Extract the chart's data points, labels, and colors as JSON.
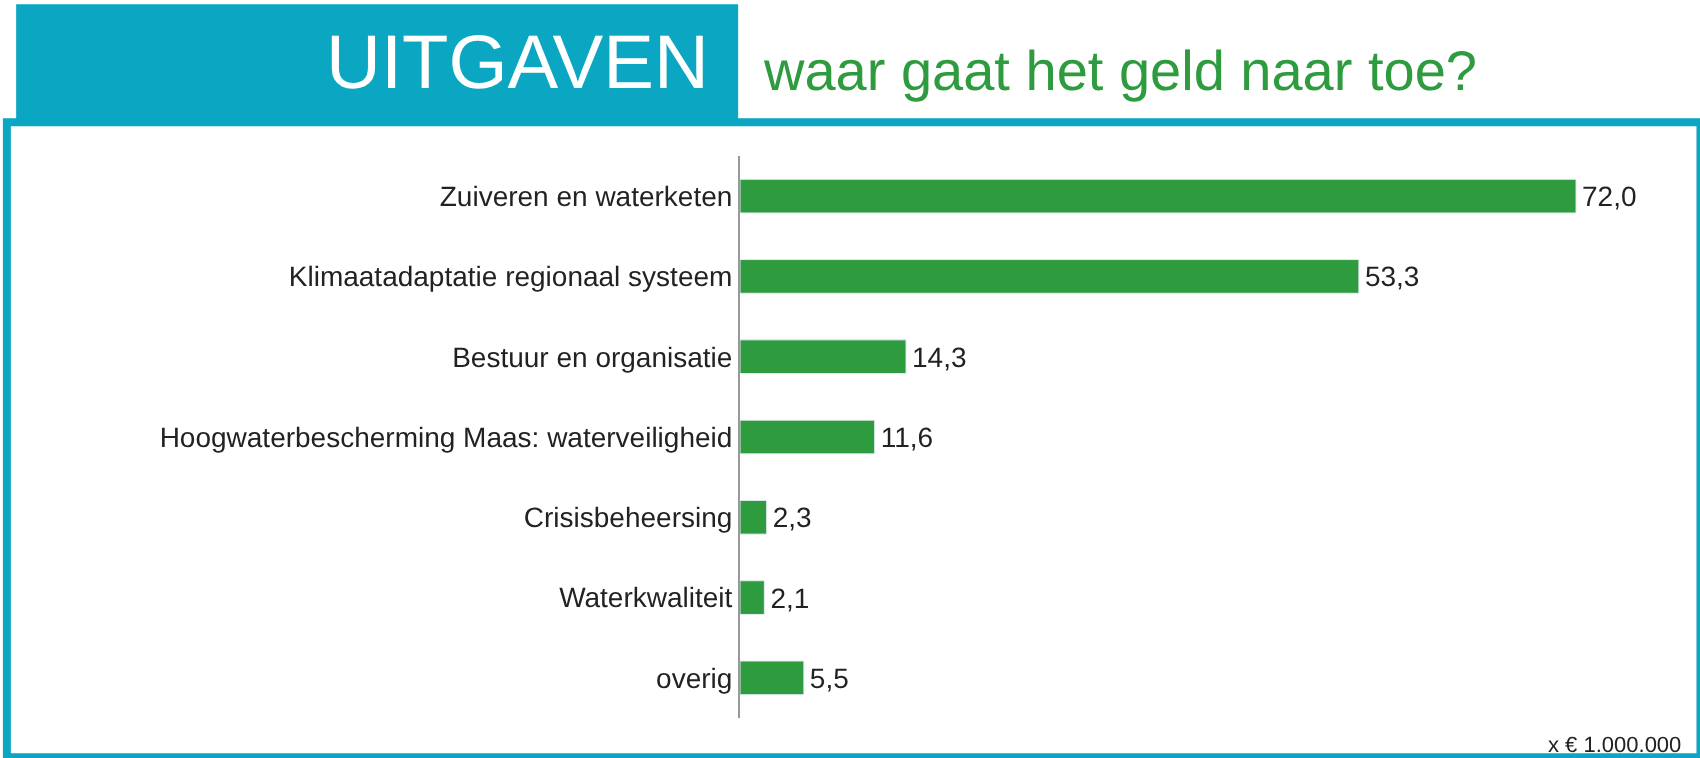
{
  "chart_data": {
    "type": "bar",
    "orientation": "horizontal",
    "title": "UITGAVEN",
    "subtitle": "waar gaat het geld naar toe?",
    "categories": [
      "Zuiveren en waterketen",
      "Klimaatadaptatie regionaal systeem",
      "Bestuur en organisatie",
      "Hoogwaterbescherming Maas: waterveiligheid",
      "Crisisbeheersing",
      "Waterkwaliteit",
      "overig"
    ],
    "values": [
      72.0,
      53.3,
      14.3,
      11.6,
      2.3,
      2.1,
      5.5
    ],
    "value_labels": [
      "72,0",
      "53,3",
      "14,3",
      "11,6",
      "2,3",
      "2,1",
      "5,5"
    ],
    "color": "#2e9b3f",
    "annotations": [
      "x € 1.000.000"
    ]
  }
}
